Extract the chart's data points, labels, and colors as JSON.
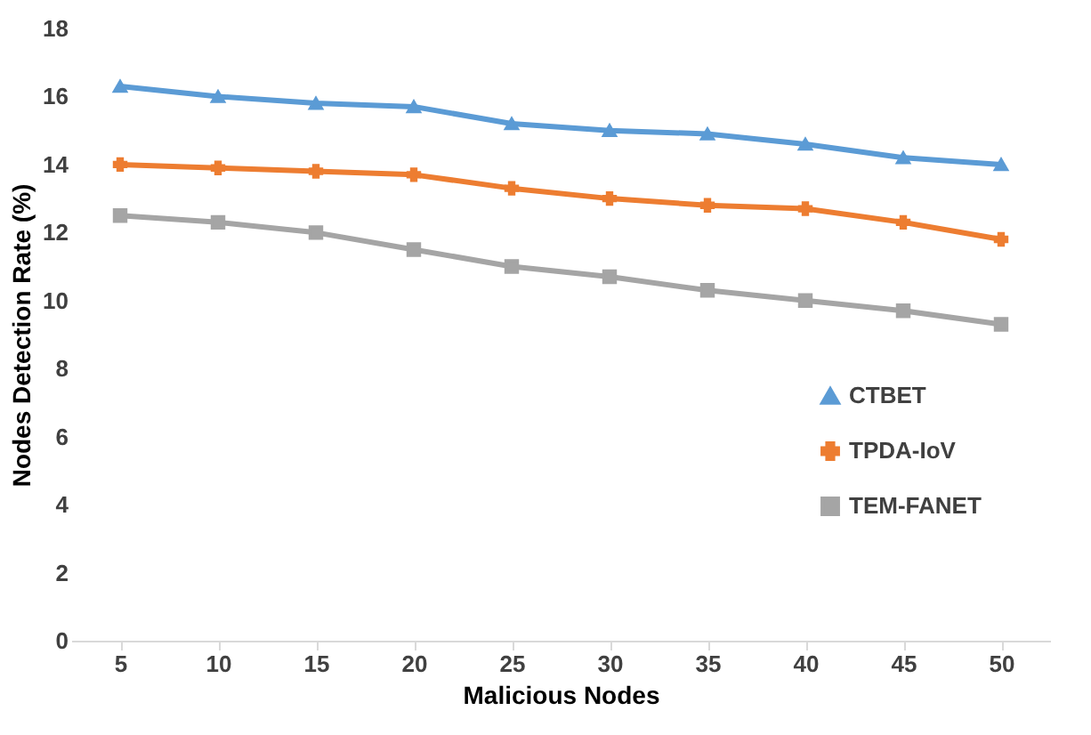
{
  "chart_data": {
    "type": "line",
    "xlabel": "Malicious Nodes",
    "ylabel": "Nodes Detection Rate (%)",
    "categories": [
      "5",
      "10",
      "15",
      "20",
      "25",
      "30",
      "35",
      "40",
      "45",
      "50"
    ],
    "ylim": [
      0,
      18
    ],
    "yticks": [
      0,
      2,
      4,
      6,
      8,
      10,
      12,
      14,
      16,
      18
    ],
    "grid": false,
    "legend": "right",
    "line_style": "solid",
    "series": [
      {
        "name": "CTBET",
        "color": "#5b9bd5",
        "marker": "triangle",
        "values": [
          16.3,
          16.0,
          15.8,
          15.7,
          15.2,
          15.0,
          14.9,
          14.6,
          14.2,
          14.0
        ]
      },
      {
        "name": "TPDA-IoV",
        "color": "#ed7d31",
        "marker": "cross",
        "values": [
          14.0,
          13.9,
          13.8,
          13.7,
          13.3,
          13.0,
          12.8,
          12.7,
          12.3,
          11.8
        ]
      },
      {
        "name": "TEM-FANET",
        "color": "#a5a5a5",
        "marker": "square",
        "values": [
          12.5,
          12.3,
          12.0,
          11.5,
          11.0,
          10.7,
          10.3,
          10.0,
          9.7,
          9.3
        ]
      }
    ]
  }
}
